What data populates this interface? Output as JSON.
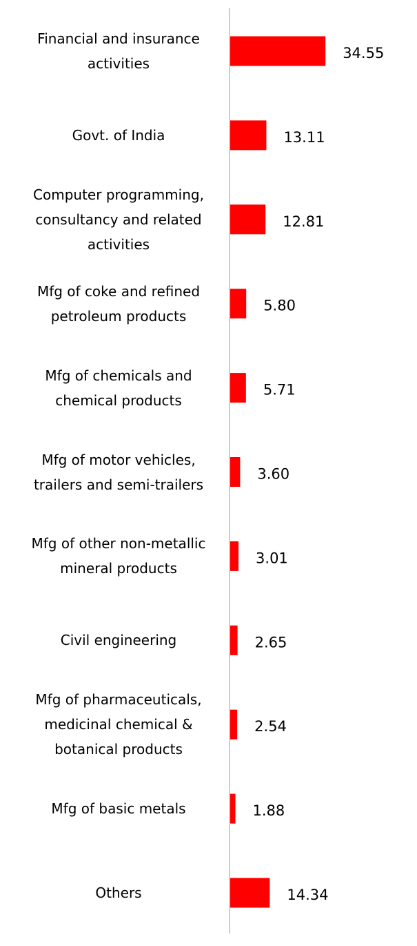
{
  "chart_data": {
    "type": "hbar",
    "categories": [
      "Financial and insurance activities",
      "Govt. of India",
      "Computer programming, consultancy and related activities",
      "Mfg of coke and refined petroleum products",
      "Mfg of chemicals and chemical products",
      "Mfg of motor vehicles, trailers and semi-trailers",
      "Mfg of other non-metallic mineral products",
      "Civil engineering",
      "Mfg of pharmaceuticals, medicinal chemical & botanical products",
      "Mfg of basic metals",
      "Others"
    ],
    "values": [
      34.55,
      13.11,
      12.81,
      5.8,
      5.71,
      3.6,
      3.01,
      2.65,
      2.54,
      1.88,
      14.34
    ],
    "value_labels": [
      "34.55",
      "13.11",
      "12.81",
      "5.80",
      "5.71",
      "3.60",
      "3.01",
      "2.65",
      "2.54",
      "1.88",
      "14.34"
    ],
    "color": "#ff0000"
  }
}
